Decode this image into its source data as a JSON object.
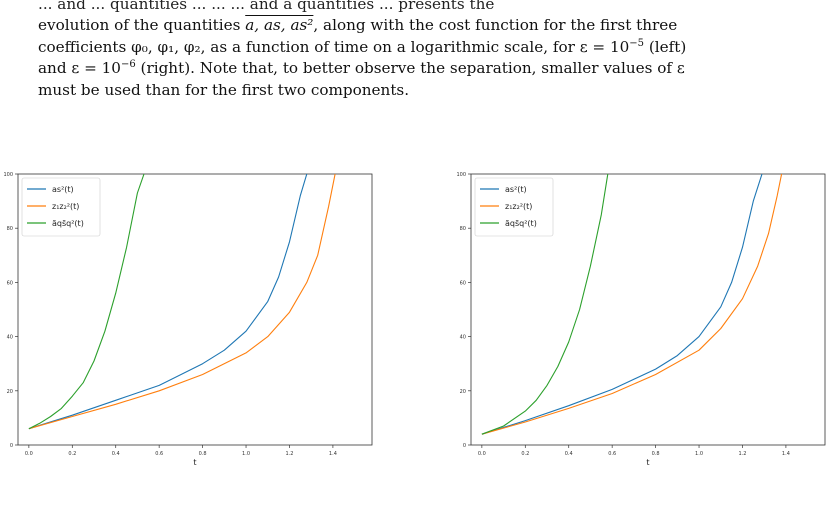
{
  "caption": {
    "line0": "... and ... quantities ... ... ... and a quantities ... presents the",
    "line1_a": "evolution of the quantities ",
    "line1_vars": "a, as, as²",
    "line1_b": ", along with the cost function for the first three",
    "line2_a": "coefficients φ₀, φ₁, φ₂, as a function of time on a logarithmic scale, for ε = 10",
    "line2_exp1": "−5",
    "line2_b": " (left)",
    "line3_a": "and ε = 10",
    "line3_exp2": "−6",
    "line3_b": " (right). Note that, to better observe the separation, smaller values of ε",
    "line4": "must be used than for the first two components."
  },
  "chart_data": [
    {
      "type": "line",
      "title": "",
      "xlabel": "t",
      "ylabel": "",
      "xlim": [
        -0.05,
        1.58
      ],
      "ylim": [
        0,
        100
      ],
      "xticks": [
        "0.0",
        "0.2",
        "0.4",
        "0.6",
        "0.8",
        "1.0",
        "1.2",
        "1.4"
      ],
      "yticks": [
        "0",
        "20",
        "40",
        "60",
        "80",
        "100"
      ],
      "legend_position": "top-left",
      "series": [
        {
          "name": "as²(t)",
          "color": "#1f77b4",
          "x": [
            0,
            0.2,
            0.4,
            0.6,
            0.8,
            0.9,
            1.0,
            1.1,
            1.15,
            1.2,
            1.25,
            1.28
          ],
          "y": [
            6,
            11,
            16.5,
            22,
            30,
            35,
            42,
            53,
            62,
            75,
            92,
            100
          ]
        },
        {
          "name": "z₁z₂²(t)",
          "color": "#ff7f0e",
          "x": [
            0,
            0.2,
            0.4,
            0.6,
            0.8,
            1.0,
            1.1,
            1.2,
            1.28,
            1.33,
            1.38,
            1.41
          ],
          "y": [
            6,
            10.5,
            15,
            20,
            26,
            34,
            40,
            49,
            60,
            70,
            88,
            100
          ]
        },
        {
          "name": "ãqs̃q²(t)",
          "color": "#2ca02c",
          "x": [
            0,
            0.05,
            0.1,
            0.15,
            0.2,
            0.25,
            0.3,
            0.35,
            0.4,
            0.45,
            0.5,
            0.53
          ],
          "y": [
            6,
            8,
            10.5,
            13.5,
            18,
            23,
            31,
            42,
            56,
            73,
            93,
            100
          ]
        }
      ]
    },
    {
      "type": "line",
      "title": "",
      "xlabel": "t",
      "ylabel": "",
      "xlim": [
        -0.05,
        1.58
      ],
      "ylim": [
        0,
        100
      ],
      "xticks": [
        "0.0",
        "0.2",
        "0.4",
        "0.6",
        "0.8",
        "1.0",
        "1.2",
        "1.4"
      ],
      "yticks": [
        "0",
        "20",
        "40",
        "60",
        "80",
        "100"
      ],
      "legend_position": "top-left",
      "series": [
        {
          "name": "as²(t)",
          "color": "#1f77b4",
          "x": [
            0,
            0.2,
            0.4,
            0.6,
            0.8,
            0.9,
            1.0,
            1.1,
            1.15,
            1.2,
            1.25,
            1.29
          ],
          "y": [
            4,
            9,
            14.5,
            20.5,
            28,
            33,
            40,
            51,
            60,
            73,
            90,
            100
          ]
        },
        {
          "name": "z₁z₂²(t)",
          "color": "#ff7f0e",
          "x": [
            0,
            0.2,
            0.4,
            0.6,
            0.8,
            1.0,
            1.1,
            1.2,
            1.27,
            1.32,
            1.36,
            1.38
          ],
          "y": [
            4,
            8.5,
            13.5,
            19,
            26,
            35,
            43,
            54,
            66,
            78,
            92,
            100
          ]
        },
        {
          "name": "ãqs̃q²(t)",
          "color": "#2ca02c",
          "x": [
            0,
            0.1,
            0.2,
            0.25,
            0.3,
            0.35,
            0.4,
            0.45,
            0.5,
            0.55,
            0.58
          ],
          "y": [
            4,
            7,
            12.5,
            16.5,
            22,
            29,
            38,
            50,
            66,
            85,
            100
          ]
        }
      ]
    }
  ]
}
